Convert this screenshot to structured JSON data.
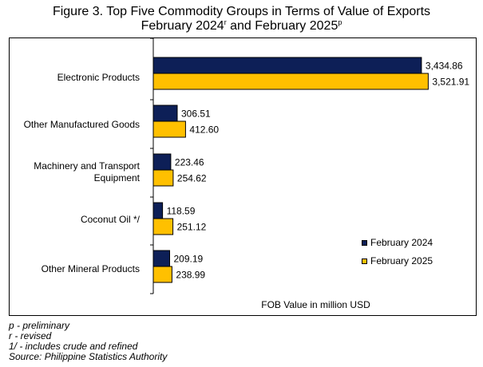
{
  "title": {
    "line1": "Figure 3. Top Five Commodity Groups in Terms of Value of Exports",
    "line2_part1": "February 2024",
    "line2_sup1": "r",
    "line2_part2": " and February 2025",
    "line2_sup2": "p"
  },
  "chart_data": {
    "type": "bar",
    "orientation": "horizontal",
    "categories": [
      "Electronic Products",
      "Other Manufactured Goods",
      "Machinery and Transport Equipment",
      "Coconut Oil */",
      "Other Mineral Products"
    ],
    "series": [
      {
        "name": "February 2024",
        "color": "#0d1f57",
        "values": [
          3434.86,
          306.51,
          223.46,
          118.59,
          209.19
        ],
        "labels": [
          "3,434.86",
          "306.51",
          "223.46",
          "118.59",
          "209.19"
        ]
      },
      {
        "name": "February 2025",
        "color": "#ffc000",
        "values": [
          3521.91,
          412.6,
          254.62,
          251.12,
          238.99
        ],
        "labels": [
          "3,521.91",
          "412.60",
          "254.62",
          "251.12",
          "238.99"
        ]
      }
    ],
    "xlabel": "FOB Value in million USD",
    "xlim": [
      0,
      4000
    ],
    "grid": false,
    "legend_position": "bottom-right"
  },
  "notes": [
    "p - preliminary",
    "r - revised",
    "1/ - includes crude and refined",
    "Source: Philippine Statistics Authority"
  ]
}
